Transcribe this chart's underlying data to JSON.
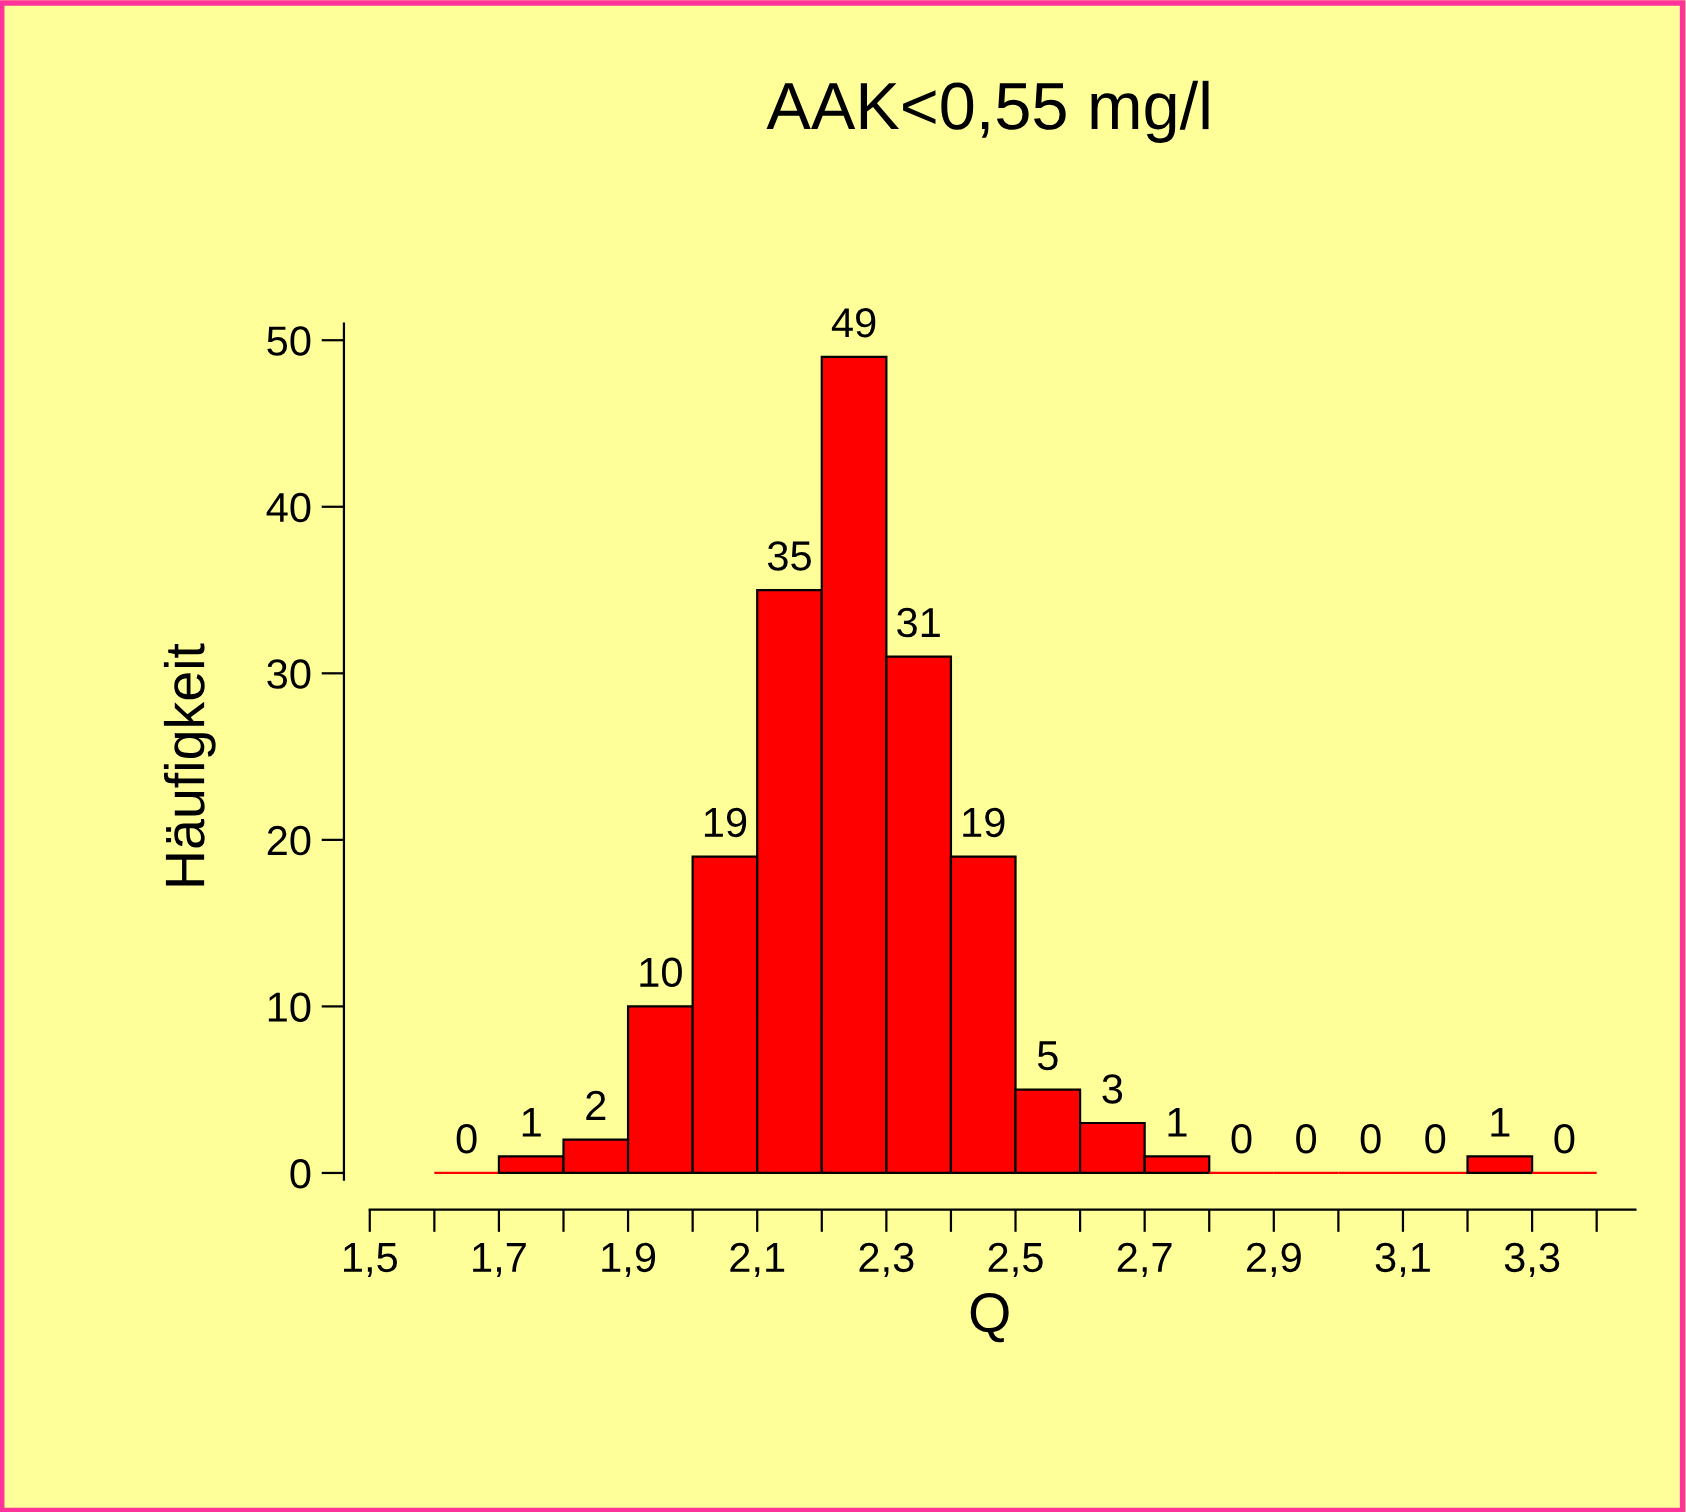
{
  "chart_data": {
    "type": "histogram",
    "title": "AAK<0,55 mg/l",
    "xlabel": "Q",
    "ylabel": "Häufigkeit",
    "bins": [
      1.6,
      1.7,
      1.8,
      1.9,
      2.0,
      2.1,
      2.2,
      2.3,
      2.4,
      2.5,
      2.6,
      2.7,
      2.8,
      2.9,
      3.0,
      3.1,
      3.2,
      3.3,
      3.4
    ],
    "values": [
      0,
      1,
      2,
      10,
      19,
      35,
      49,
      31,
      19,
      5,
      3,
      1,
      0,
      0,
      0,
      0,
      1,
      0
    ],
    "color": "#ff0000",
    "data_labels": true,
    "grid": false,
    "xlim": [
      1.46,
      3.46
    ],
    "ylim": [
      -2.2,
      51
    ],
    "xticks": [
      {
        "value": 1.5,
        "label": "1,5"
      },
      {
        "value": 1.6,
        "label": null
      },
      {
        "value": 1.7,
        "label": "1,7"
      },
      {
        "value": 1.8,
        "label": null
      },
      {
        "value": 1.9,
        "label": "1,9"
      },
      {
        "value": 2.0,
        "label": null
      },
      {
        "value": 2.1,
        "label": "2,1"
      },
      {
        "value": 2.2,
        "label": null
      },
      {
        "value": 2.3,
        "label": "2,3"
      },
      {
        "value": 2.4,
        "label": null
      },
      {
        "value": 2.5,
        "label": "2,5"
      },
      {
        "value": 2.6,
        "label": null
      },
      {
        "value": 2.7,
        "label": "2,7"
      },
      {
        "value": 2.8,
        "label": null
      },
      {
        "value": 2.9,
        "label": "2,9"
      },
      {
        "value": 3.0,
        "label": null
      },
      {
        "value": 3.1,
        "label": "3,1"
      },
      {
        "value": 3.2,
        "label": null
      },
      {
        "value": 3.3,
        "label": "3,3"
      },
      {
        "value": 3.4,
        "label": null
      }
    ],
    "yticks": [
      0,
      10,
      20,
      30,
      40,
      50
    ]
  }
}
